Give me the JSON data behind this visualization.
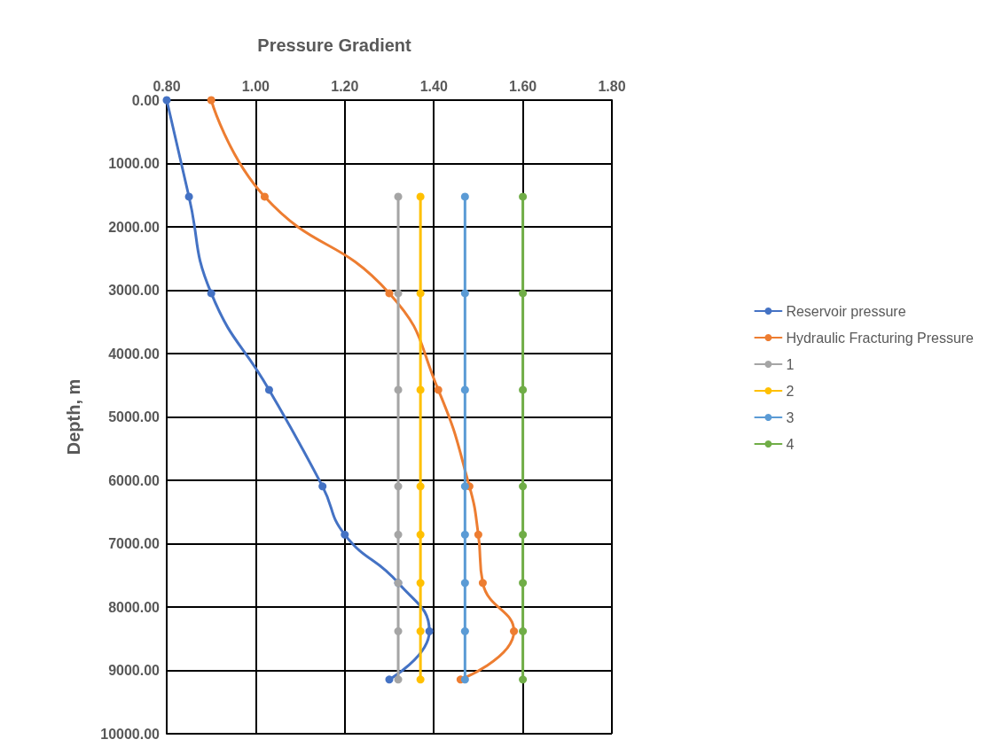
{
  "chart_data": {
    "type": "line",
    "title": "Pressure Gradient",
    "ylabel": "Depth, m",
    "xlim": [
      0.8,
      1.8
    ],
    "xticks": [
      {
        "value": 0.8,
        "label": "0.80"
      },
      {
        "value": 1.0,
        "label": "1.00"
      },
      {
        "value": 1.2,
        "label": "1.20"
      },
      {
        "value": 1.4,
        "label": "1.40"
      },
      {
        "value": 1.6,
        "label": "1.60"
      },
      {
        "value": 1.8,
        "label": "1.80"
      }
    ],
    "ylim": [
      10000,
      0
    ],
    "yticks": [
      {
        "value": 0,
        "label": "0.00"
      },
      {
        "value": 1000,
        "label": "1000.00"
      },
      {
        "value": 2000,
        "label": "2000.00"
      },
      {
        "value": 3000,
        "label": "3000.00"
      },
      {
        "value": 4000,
        "label": "4000.00"
      },
      {
        "value": 5000,
        "label": "5000.00"
      },
      {
        "value": 6000,
        "label": "6000.00"
      },
      {
        "value": 7000,
        "label": "7000.00"
      },
      {
        "value": 8000,
        "label": "8000.00"
      },
      {
        "value": 9000,
        "label": "9000.00"
      },
      {
        "value": 10000,
        "label": "10000.00"
      }
    ],
    "series": [
      {
        "name": "Reservoir pressure",
        "color": "#4472c4",
        "x": [
          0.8,
          0.85,
          0.9,
          1.03,
          1.15,
          1.2,
          1.32,
          1.39,
          1.3
        ],
        "values": [
          0,
          1524,
          3048,
          4572,
          6096,
          6858,
          7620,
          8382,
          9144
        ]
      },
      {
        "name": "Hydraulic Fracturing Pressure",
        "color": "#ed7d31",
        "x": [
          0.9,
          1.02,
          1.3,
          1.41,
          1.48,
          1.5,
          1.51,
          1.58,
          1.46
        ],
        "values": [
          0,
          1524,
          3048,
          4572,
          6096,
          6858,
          7620,
          8382,
          9144
        ]
      },
      {
        "name": "1",
        "color": "#a5a5a5",
        "x": [
          1.32,
          1.32,
          1.32,
          1.32,
          1.32,
          1.32,
          1.32,
          1.32
        ],
        "values": [
          1524,
          3048,
          4572,
          6096,
          6858,
          7620,
          8382,
          9144
        ]
      },
      {
        "name": "2",
        "color": "#ffc000",
        "x": [
          1.37,
          1.37,
          1.37,
          1.37,
          1.37,
          1.37,
          1.37,
          1.37
        ],
        "values": [
          1524,
          3048,
          4572,
          6096,
          6858,
          7620,
          8382,
          9144
        ]
      },
      {
        "name": "3",
        "color": "#5b9bd5",
        "x": [
          1.47,
          1.47,
          1.47,
          1.47,
          1.47,
          1.47,
          1.47,
          1.47
        ],
        "values": [
          1524,
          3048,
          4572,
          6096,
          6858,
          7620,
          8382,
          9144
        ]
      },
      {
        "name": "4",
        "color": "#70ad47",
        "x": [
          1.6,
          1.6,
          1.6,
          1.6,
          1.6,
          1.6,
          1.6,
          1.6
        ],
        "values": [
          1524,
          3048,
          4572,
          6096,
          6858,
          7620,
          8382,
          9144
        ]
      }
    ],
    "grid": true,
    "legend": "right",
    "marker": "circle",
    "line_style": "solid"
  }
}
